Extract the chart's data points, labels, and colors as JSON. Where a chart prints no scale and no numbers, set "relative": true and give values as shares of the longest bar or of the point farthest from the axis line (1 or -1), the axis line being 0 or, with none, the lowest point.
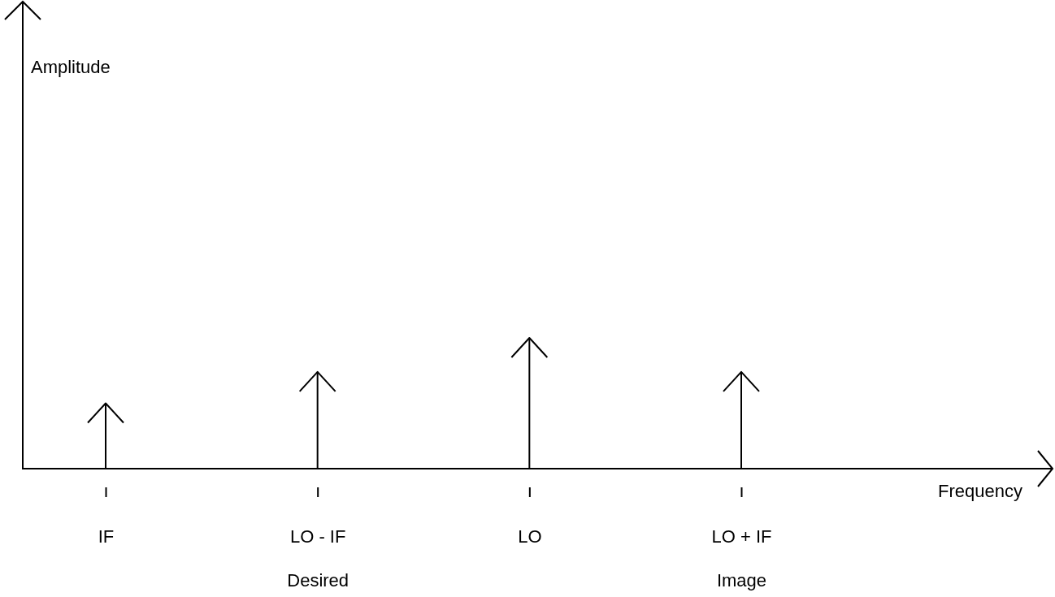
{
  "chart_data": {
    "type": "bar",
    "relative": true,
    "categories": [
      "IF",
      "LO - IF\nDesired",
      "LO",
      "LO + IF\nImage"
    ],
    "series": [
      {
        "color": "#000000",
        "values": [
          0.5,
          0.74,
          1,
          0.74
        ]
      }
    ],
    "annotations": [
      "Amplitude",
      "Frequency"
    ]
  }
}
